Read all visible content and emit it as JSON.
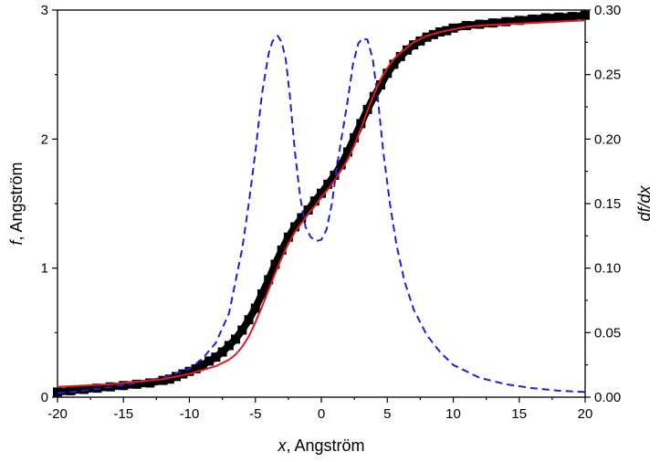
{
  "chart_data": {
    "type": "line",
    "xlabel": "x, Angström",
    "xlabel_italic": "x",
    "xlabel_rest": ", Angström",
    "ylabel": "f, Angström",
    "ylabel_italic": "f",
    "ylabel_rest": ", Angström",
    "y2label": "df/dx",
    "xlim": [
      -20,
      20
    ],
    "ylim": [
      0,
      3
    ],
    "y2lim": [
      0,
      0.3
    ],
    "xticks": [
      "-20",
      "-15",
      "-10",
      "-5",
      "0",
      "5",
      "10",
      "15",
      "20"
    ],
    "yticks": [
      "0",
      "1",
      "2",
      "3"
    ],
    "y2ticks": [
      "0.00",
      "0.05",
      "0.10",
      "0.15",
      "0.20",
      "0.25",
      "0.30"
    ],
    "grid": false,
    "series": [
      {
        "style": "markers-square",
        "color": "#000000",
        "axis": "left",
        "x": [
          -20,
          -19,
          -18,
          -17,
          -16,
          -15,
          -14,
          -13,
          -12,
          -11.5,
          -11,
          -10.5,
          -10,
          -9.5,
          -9,
          -8.5,
          -8,
          -7.5,
          -7,
          -6.5,
          -6,
          -5.5,
          -5,
          -4.5,
          -4,
          -3.5,
          -3,
          -2.5,
          -2,
          -1.5,
          -1,
          -0.5,
          0,
          0.5,
          1,
          1.5,
          2,
          2.5,
          3,
          3.5,
          4,
          4.5,
          5,
          5.5,
          6,
          6.5,
          7,
          7.5,
          8,
          8.5,
          9,
          9.5,
          10,
          11,
          12,
          13,
          14,
          15,
          16,
          17,
          18,
          19,
          20
        ],
        "y": [
          0.04,
          0.05,
          0.06,
          0.07,
          0.08,
          0.09,
          0.1,
          0.11,
          0.13,
          0.14,
          0.16,
          0.18,
          0.2,
          0.22,
          0.25,
          0.28,
          0.31,
          0.35,
          0.4,
          0.45,
          0.52,
          0.6,
          0.69,
          0.8,
          0.91,
          1.03,
          1.14,
          1.24,
          1.32,
          1.39,
          1.45,
          1.52,
          1.58,
          1.65,
          1.72,
          1.8,
          1.9,
          2.01,
          2.12,
          2.23,
          2.33,
          2.42,
          2.51,
          2.58,
          2.64,
          2.69,
          2.73,
          2.76,
          2.79,
          2.81,
          2.83,
          2.84,
          2.86,
          2.88,
          2.89,
          2.9,
          2.91,
          2.92,
          2.93,
          2.94,
          2.945,
          2.95,
          2.96
        ]
      },
      {
        "style": "solid",
        "color": "#e31a1c",
        "axis": "left",
        "x": [
          -20,
          -18,
          -16,
          -14,
          -12,
          -11,
          -10,
          -9,
          -8,
          -7,
          -6.5,
          -6,
          -5.5,
          -5,
          -4.5,
          -4,
          -3.5,
          -3,
          -2.5,
          -2,
          -1.5,
          -1,
          -0.5,
          0,
          0.5,
          1,
          1.5,
          2,
          2.5,
          3,
          3.5,
          4,
          4.5,
          5,
          5.5,
          6,
          7,
          8,
          9,
          10,
          11,
          12,
          14,
          16,
          18,
          20
        ],
        "y": [
          0.08,
          0.09,
          0.1,
          0.12,
          0.14,
          0.16,
          0.18,
          0.21,
          0.24,
          0.29,
          0.33,
          0.39,
          0.47,
          0.58,
          0.7,
          0.83,
          0.96,
          1.08,
          1.19,
          1.28,
          1.35,
          1.42,
          1.48,
          1.55,
          1.61,
          1.68,
          1.76,
          1.84,
          1.95,
          2.08,
          2.22,
          2.35,
          2.46,
          2.55,
          2.62,
          2.67,
          2.75,
          2.8,
          2.83,
          2.85,
          2.87,
          2.88,
          2.89,
          2.9,
          2.91,
          2.92
        ]
      },
      {
        "style": "dashed",
        "color": "#1f1fd8",
        "axis": "right",
        "x": [
          -20,
          -18,
          -16,
          -14,
          -12,
          -10,
          -9,
          -8,
          -7,
          -6,
          -5.5,
          -5,
          -4.5,
          -4,
          -3.7,
          -3.3,
          -3,
          -2.7,
          -2.4,
          -2,
          -1.6,
          -1.2,
          -0.8,
          -0.4,
          0,
          0.4,
          0.8,
          1.2,
          1.6,
          2,
          2.4,
          2.8,
          3.1,
          3.5,
          3.9,
          4.3,
          4.7,
          5.2,
          5.7,
          6.3,
          7,
          8,
          9,
          10,
          12,
          14,
          16,
          18,
          20
        ],
        "y": [
          0.003,
          0.005,
          0.008,
          0.011,
          0.015,
          0.022,
          0.03,
          0.042,
          0.065,
          0.115,
          0.15,
          0.19,
          0.235,
          0.266,
          0.276,
          0.28,
          0.275,
          0.262,
          0.235,
          0.19,
          0.155,
          0.132,
          0.124,
          0.121,
          0.122,
          0.13,
          0.15,
          0.18,
          0.205,
          0.23,
          0.258,
          0.274,
          0.278,
          0.277,
          0.262,
          0.23,
          0.19,
          0.15,
          0.118,
          0.09,
          0.068,
          0.048,
          0.035,
          0.025,
          0.015,
          0.01,
          0.007,
          0.005,
          0.004
        ]
      }
    ]
  }
}
